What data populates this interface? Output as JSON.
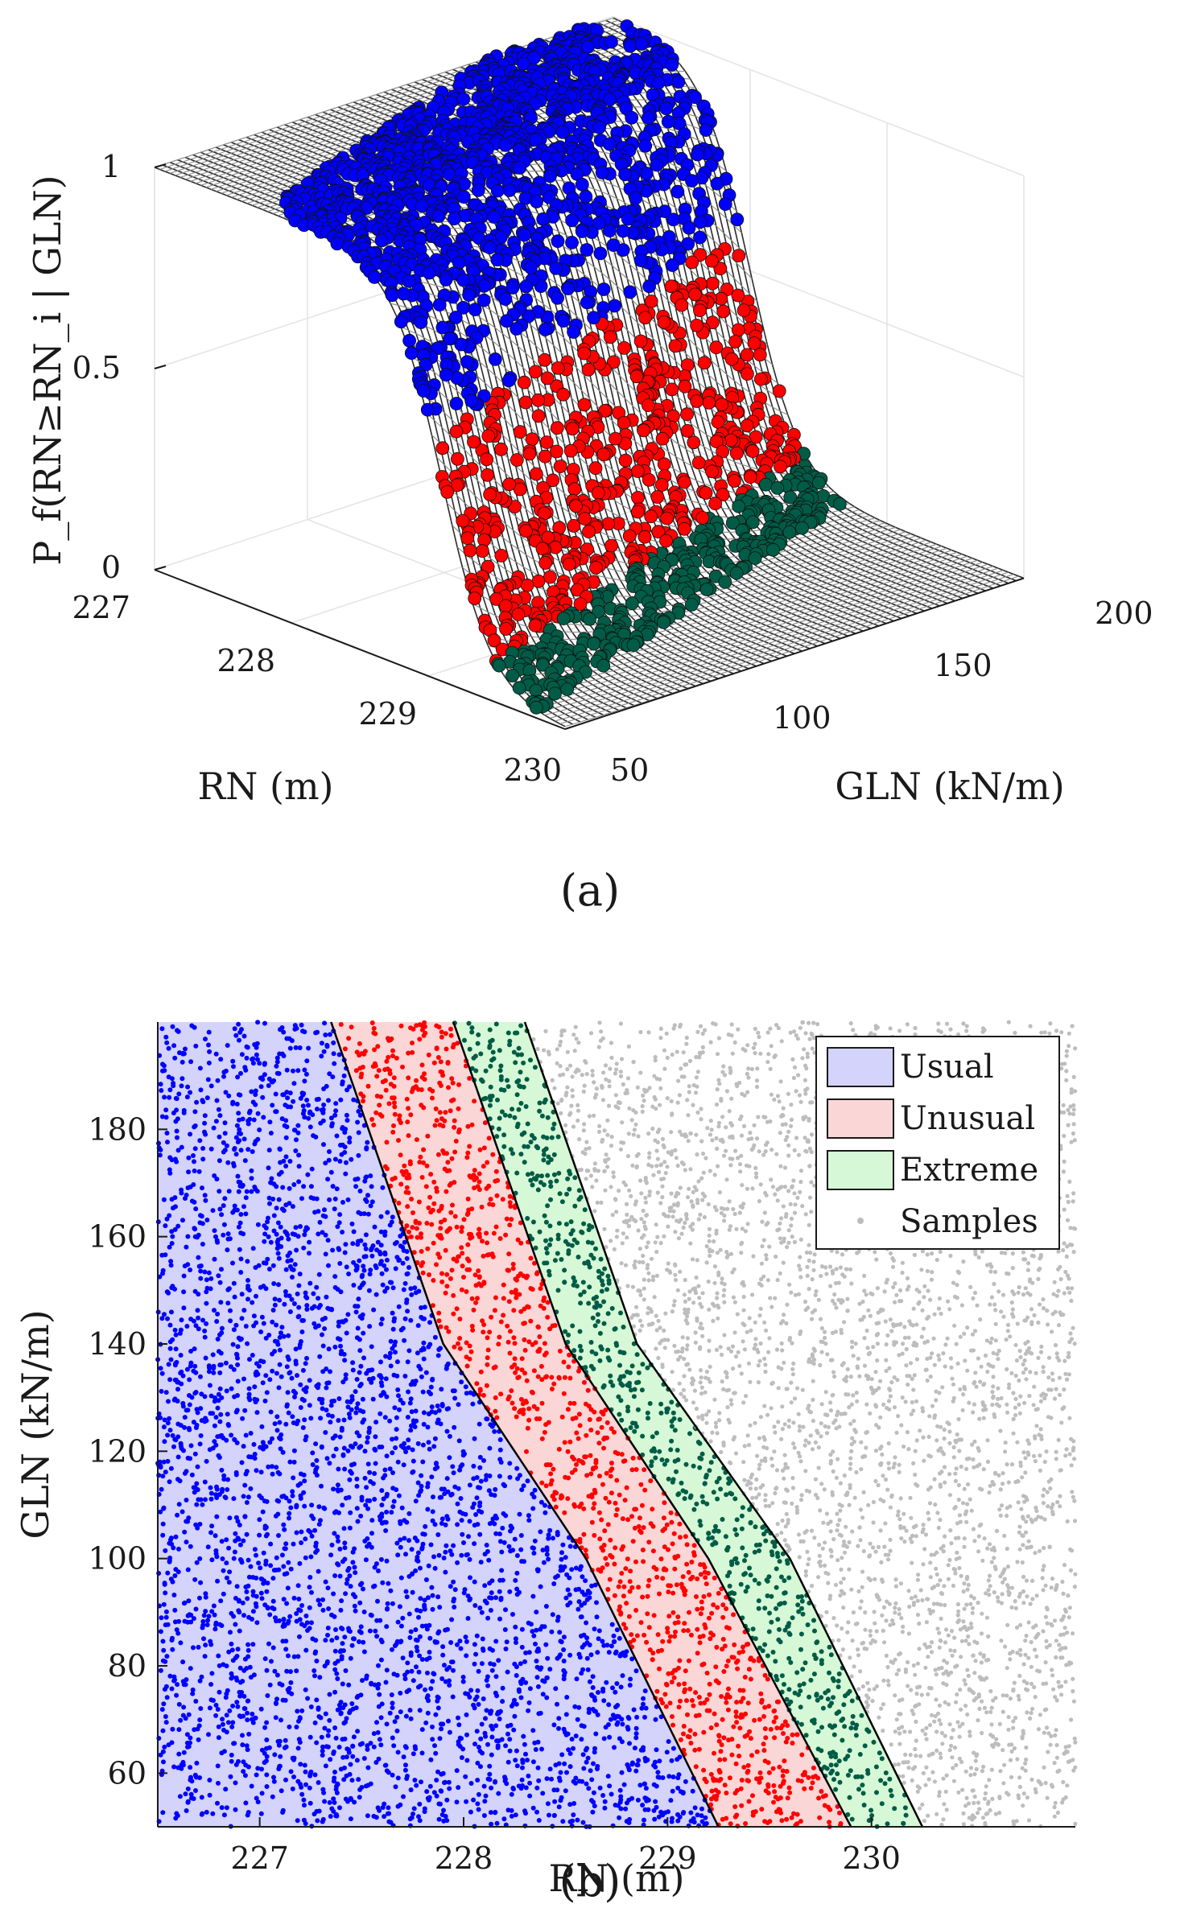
{
  "panel_a": {
    "caption": "(a)",
    "chart_data": {
      "type": "surface",
      "xlabel": "RN (m)",
      "ylabel": "GLN (kN/m)",
      "zlabel": "P_f(RN≥RN_i | GLN)",
      "xlim": [
        227,
        230
      ],
      "ylim": [
        50,
        200
      ],
      "zlim": [
        0,
        1
      ],
      "x_ticks": [
        "227",
        "228",
        "229",
        "230"
      ],
      "y_ticks": [
        "50",
        "100",
        "150",
        "200"
      ],
      "z_ticks": [
        "0",
        "0.5",
        "1"
      ],
      "surface_model": "logistic drop in P_f across RN; transition location shifts to larger RN as GLN decreases",
      "marker_groups": [
        {
          "name": "Usual",
          "color": "#0000ff",
          "pf_range": [
            0.6,
            1.0
          ]
        },
        {
          "name": "Unusual",
          "color": "#ff0000",
          "pf_range": [
            0.1,
            0.6
          ]
        },
        {
          "name": "Extreme",
          "color": "#005c46",
          "pf_range": [
            0.0,
            0.1
          ]
        }
      ]
    }
  },
  "panel_b": {
    "caption": "(b)",
    "chart_data": {
      "type": "scatter",
      "xlabel": "RN (m)",
      "ylabel": "GLN (kN/m)",
      "xlim": [
        226.5,
        231.0
      ],
      "ylim": [
        50,
        200
      ],
      "x_ticks": [
        227,
        228,
        229,
        230
      ],
      "y_ticks": [
        60,
        80,
        100,
        120,
        140,
        160,
        180
      ],
      "boundaries": [
        {
          "name": "Usual/Unusual",
          "points": [
            [
              227.35,
              200
            ],
            [
              227.9,
              140
            ],
            [
              228.6,
              100
            ],
            [
              229.25,
              50
            ]
          ]
        },
        {
          "name": "Unusual/Extreme",
          "points": [
            [
              227.95,
              200
            ],
            [
              228.5,
              140
            ],
            [
              229.2,
              100
            ],
            [
              229.9,
              50
            ]
          ]
        },
        {
          "name": "Extreme/Samples",
          "points": [
            [
              228.3,
              200
            ],
            [
              228.85,
              140
            ],
            [
              229.6,
              100
            ],
            [
              230.25,
              50
            ]
          ]
        }
      ],
      "regions": [
        {
          "name": "Usual",
          "fill": "#d3d3fb",
          "marker": "#0000ff"
        },
        {
          "name": "Unusual",
          "fill": "#fbd6d6",
          "marker": "#ff0000"
        },
        {
          "name": "Extreme",
          "fill": "#d6f8d6",
          "marker": "#005c46"
        }
      ],
      "samples_color": "#bdbdbd",
      "legend": {
        "position": "top-right",
        "entries": [
          {
            "label": "Usual",
            "swatch": "#d3d3fb"
          },
          {
            "label": "Unusual",
            "swatch": "#fbd6d6"
          },
          {
            "label": "Extreme",
            "swatch": "#d6f8d6"
          },
          {
            "label": "Samples",
            "swatch": "#bdbdbd"
          }
        ]
      },
      "sample_count_approx": 9000
    }
  }
}
